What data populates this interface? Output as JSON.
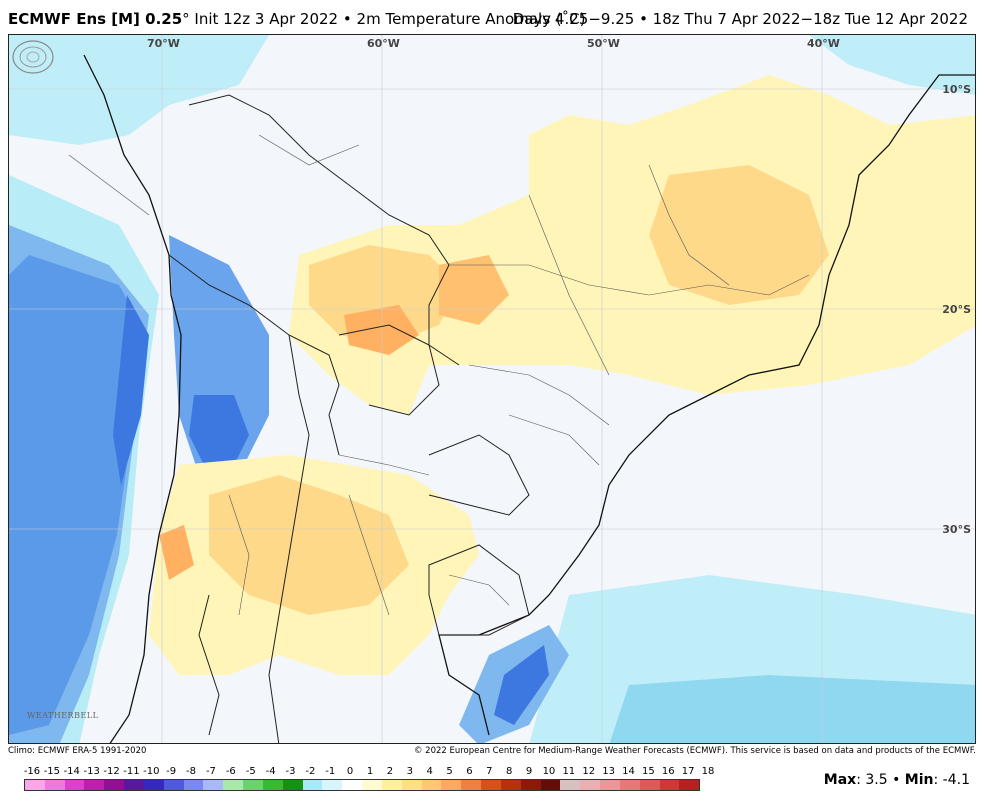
{
  "header": {
    "model": "ECMWF Ens [M] 0.25",
    "degree_mark": "°",
    "init": "Init 12z 3 Apr 2022",
    "sep": "•",
    "variable": "2m Temperature Anomaly (˚C)",
    "right": "Days 4.25−9.25 • 18z Thu 7 Apr 2022−18z Tue 12 Apr 2022"
  },
  "map": {
    "lon_labels": [
      "70°W",
      "60°W",
      "50°W",
      "40°W"
    ],
    "lat_labels": [
      "10°S",
      "20°S",
      "30°S"
    ],
    "logo_text": "WEATHERBELL"
  },
  "footer": {
    "climo": "Climo: ECMWF ERA-5 1991-2020",
    "copyright": "© 2022 European Centre for Medium-Range Weather Forecasts (ECMWF). This service is based on data and products of the ECMWF."
  },
  "colorbar": {
    "labels": [
      "-16",
      "-15",
      "-14",
      "-13",
      "-12",
      "-11",
      "-10",
      "-9",
      "-8",
      "-7",
      "-6",
      "-5",
      "-4",
      "-3",
      "-2",
      "-1",
      "0",
      "1",
      "2",
      "3",
      "4",
      "5",
      "6",
      "7",
      "8",
      "9",
      "10",
      "11",
      "12",
      "13",
      "14",
      "15",
      "16",
      "17",
      "18"
    ],
    "colors": [
      "#f7a8e8",
      "#ee78dc",
      "#e040c8",
      "#c020a8",
      "#901090",
      "#5818a0",
      "#3428c0",
      "#5058e0",
      "#7a88f0",
      "#a8b8f8",
      "#a8e8a8",
      "#70d070",
      "#38b838",
      "#189018",
      "#a8e8f8",
      "#d8f4fc",
      "#ffffff",
      "#fffad0",
      "#fff0a0",
      "#ffe080",
      "#ffc870",
      "#ffa860",
      "#f08040",
      "#d85020",
      "#b83010",
      "#901808",
      "#601008",
      "#d8c0c0",
      "#e8b0b0",
      "#e89898",
      "#e87878",
      "#e05858",
      "#d03838",
      "#b82020"
    ]
  },
  "stats": {
    "max_label": "Max",
    "max_value": "3.5",
    "min_label": "Min",
    "min_value": "-4.1"
  }
}
